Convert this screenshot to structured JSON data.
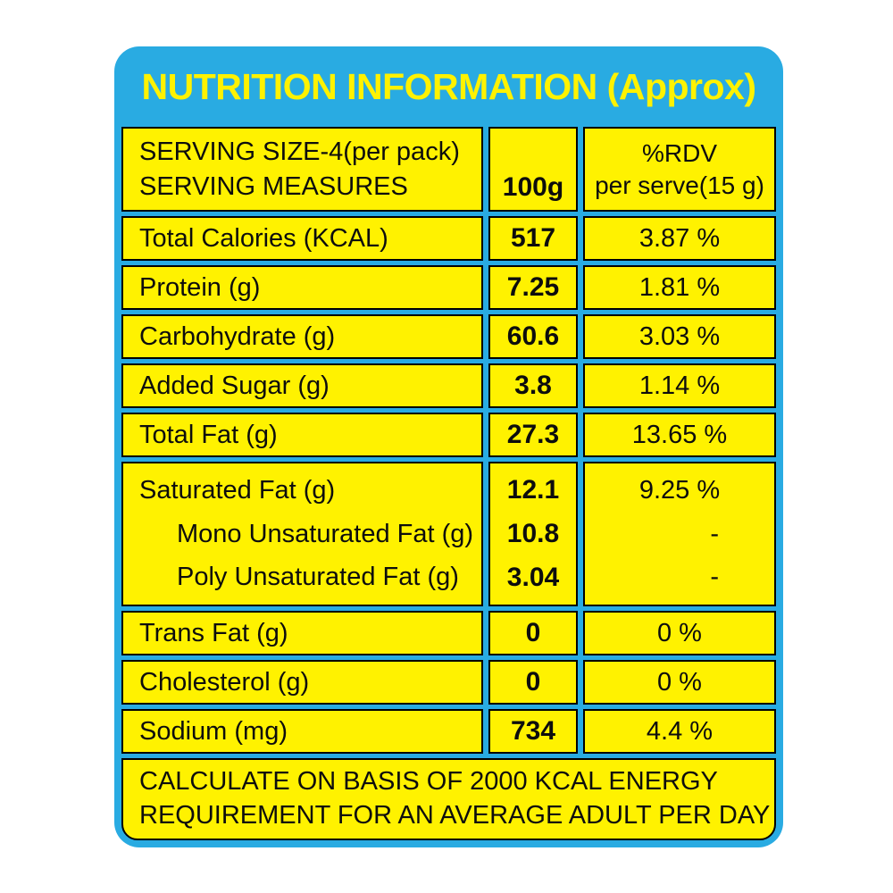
{
  "theme": {
    "blue": "#29ABE2",
    "yellow": "#FFF200",
    "ink": "#0d0d0d"
  },
  "label": {
    "title": "NUTRITION INFORMATION (Approx)",
    "header": {
      "serving_line1": "SERVING SIZE-4(per pack)",
      "serving_line2": "SERVING MEASURES",
      "per100_col": "100g",
      "rdv_line1": "%RDV",
      "rdv_line2": "per serve(15 g)"
    },
    "rows": [
      {
        "label": "Total Calories (KCAL)",
        "per100": "517",
        "rdv": "3.87 %"
      },
      {
        "label": "Protein (g)",
        "per100": "7.25",
        "rdv": "1.81 %"
      },
      {
        "label": "Carbohydrate (g)",
        "per100": "60.6",
        "rdv": "3.03 %"
      },
      {
        "label": "Added Sugar (g)",
        "per100": "3.8",
        "rdv": "1.14 %"
      },
      {
        "label": "Total Fat (g)",
        "per100": "27.3",
        "rdv": "13.65 %"
      },
      {
        "label": "Trans Fat (g)",
        "per100": "0",
        "rdv": "0 %"
      },
      {
        "label": "Cholesterol (g)",
        "per100": "0",
        "rdv": "0 %"
      },
      {
        "label": "Sodium (mg)",
        "per100": "734",
        "rdv": "4.4 %"
      }
    ],
    "fat_block": [
      {
        "label": "Saturated Fat (g)",
        "per100": "12.1",
        "rdv": "9.25 %"
      },
      {
        "label": "Mono Unsaturated Fat (g)",
        "per100": "10.8",
        "rdv": "-"
      },
      {
        "label": "Poly Unsaturated Fat (g)",
        "per100": "3.04",
        "rdv": "-"
      }
    ],
    "footer": {
      "line1": "CALCULATE ON BASIS OF 2000 KCAL ENERGY",
      "line2": "REQUIREMENT FOR AN AVERAGE ADULT PER DAY"
    }
  }
}
